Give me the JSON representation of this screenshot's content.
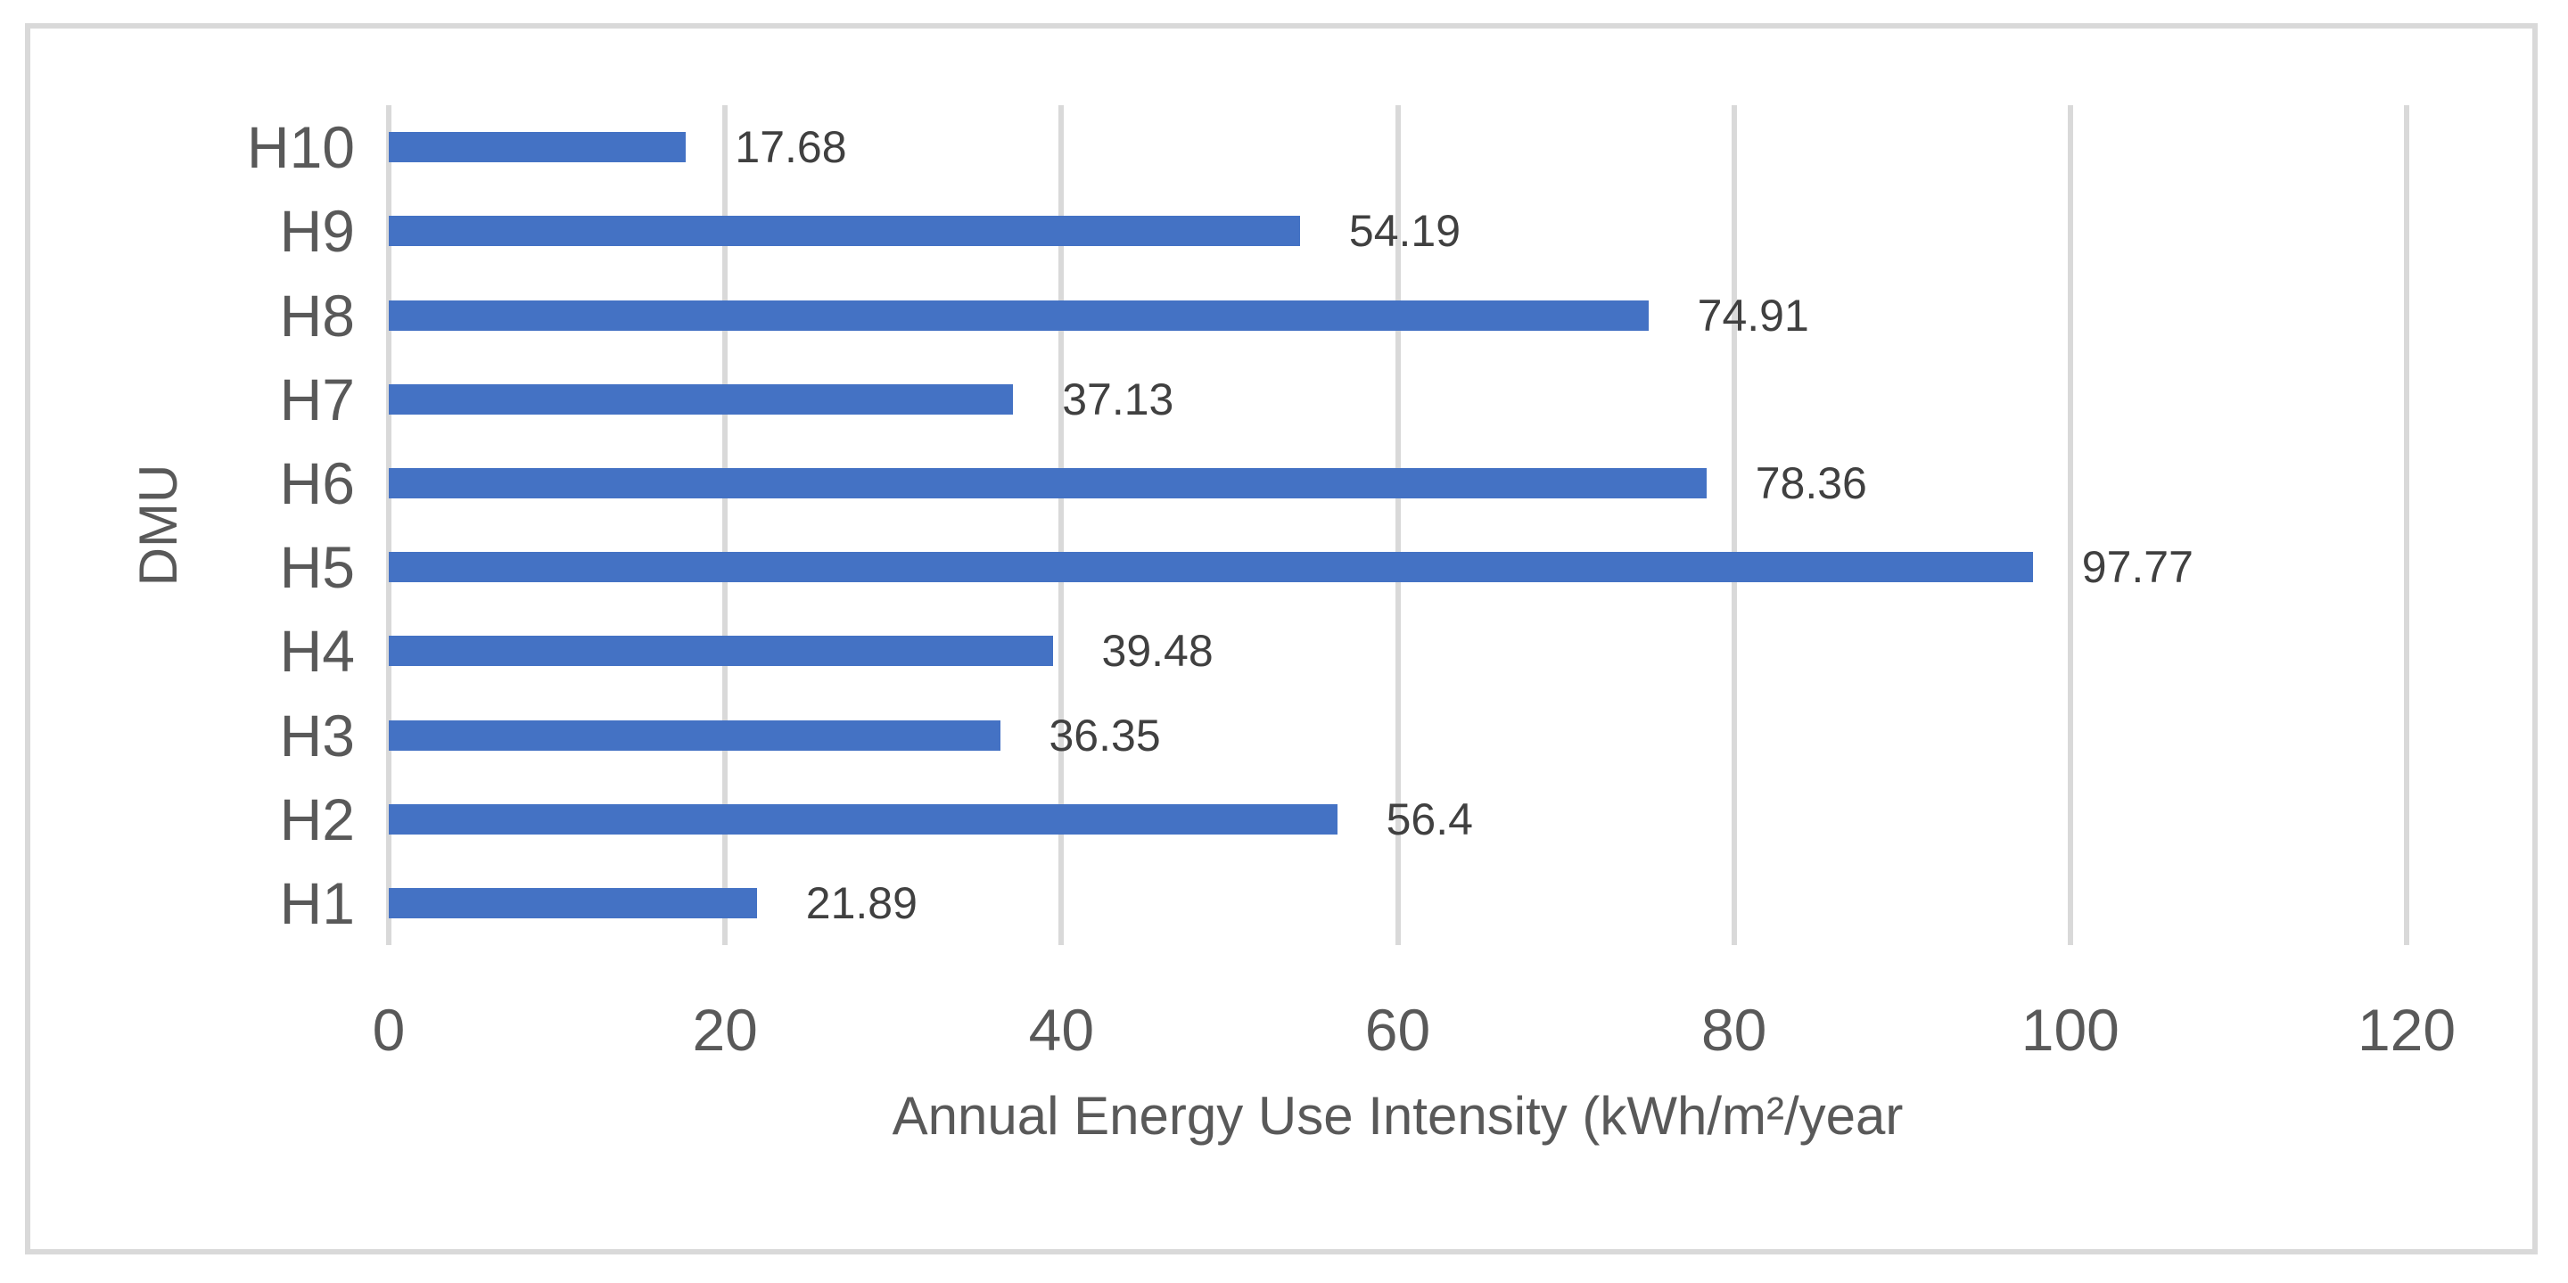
{
  "chart_data": {
    "type": "bar",
    "orientation": "horizontal",
    "title": "",
    "xlabel": "Annual Energy Use Intensity (kWh/m²/year",
    "ylabel": "DMU",
    "categories_order": "top-to-bottom",
    "categories": [
      "H10",
      "H9",
      "H8",
      "H7",
      "H6",
      "H5",
      "H4",
      "H3",
      "H2",
      "H1"
    ],
    "values": [
      17.68,
      54.19,
      74.91,
      37.13,
      78.36,
      97.77,
      39.48,
      36.35,
      56.4,
      21.89
    ],
    "value_labels": [
      "17.68",
      "54.19",
      "74.91",
      "37.13",
      "78.36",
      "97.77",
      "39.48",
      "36.35",
      "56.4",
      "21.89"
    ],
    "xlim": [
      0,
      120
    ],
    "x_ticks": [
      0,
      20,
      40,
      60,
      80,
      100,
      120
    ],
    "grid": "vertical-only",
    "legend": "none",
    "data_labels_position": "outside-end",
    "colors": {
      "bar": "#4472C4",
      "gridline": "#D9D9D9",
      "frame_border": "#D9D9D9",
      "axis_text": "#595959",
      "data_label": "#404040",
      "background": "#FFFFFF"
    }
  }
}
